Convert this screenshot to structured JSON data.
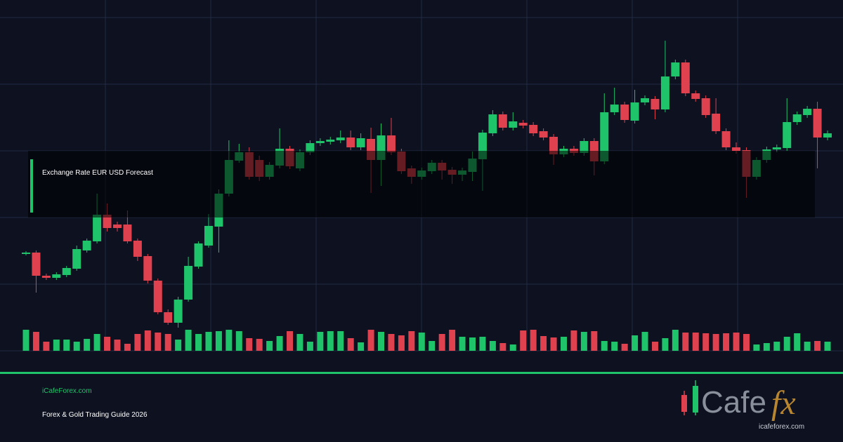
{
  "panel": {
    "label": "Exchange Rate EUR USD Forecast"
  },
  "footer": {
    "site": "iCafeForex.com",
    "tagline": "Forex & Gold Trading Guide 2026"
  },
  "logo": {
    "wordmark": "Cafe",
    "accent": "fx",
    "url": "icafeforex.com"
  }
}
